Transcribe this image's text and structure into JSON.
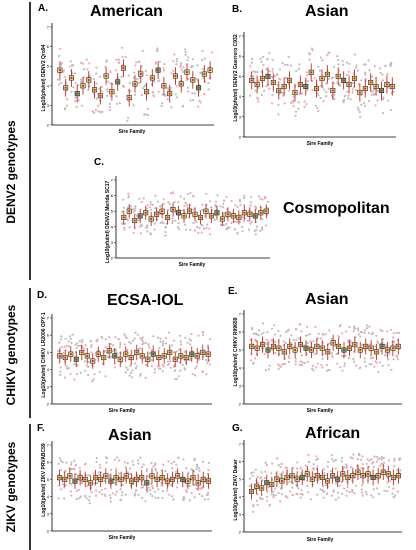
{
  "group_labels": [
    "DENV2 genotypes",
    "CHIKV genotypes",
    "ZIKV genotypes"
  ],
  "colors": {
    "grey_dots": "#bdbdbd",
    "pink_dots": "#f3a5b8",
    "mean": "#cc2b1f",
    "square_fill": "#f0d889",
    "green_square": "#63b37a"
  },
  "chart_data": [
    {
      "id": "A",
      "letter": "A.",
      "type": "scatter",
      "title": "American",
      "virus": "DENV2 Qro94",
      "ylabel": "Log10(pfu/ml) DENV2 Qro94",
      "xlabel": "Sire Family",
      "n_families": 27,
      "legend": "none",
      "grid": false,
      "family_means": [
        4.8,
        3.9,
        4.4,
        3.6,
        4.0,
        4.3,
        3.8,
        3.5,
        4.5,
        3.7,
        4.2,
        4.9,
        3.4,
        4.1,
        4.6,
        3.7,
        4.4,
        4.8,
        4.0,
        3.6,
        4.5,
        4.1,
        4.7,
        4.3,
        3.9,
        4.6,
        4.8
      ]
    },
    {
      "id": "B",
      "letter": "B.",
      "type": "scatter",
      "title": "Asian",
      "virus": "DENV2 Guerrero C932",
      "ylabel": "Log10(pfu/ml) DENV2 Guerrero C932",
      "xlabel": "Sire Family",
      "n_families": 27,
      "legend": "none",
      "grid": false,
      "family_means": [
        4.8,
        4.6,
        4.9,
        5.0,
        4.7,
        4.3,
        4.5,
        4.8,
        4.2,
        4.6,
        4.5,
        5.2,
        4.4,
        4.9,
        5.1,
        4.3,
        5.0,
        4.8,
        4.6,
        4.9,
        4.2,
        4.4,
        4.7,
        4.5,
        4.3,
        4.6,
        4.5
      ]
    },
    {
      "id": "C",
      "letter": "C.",
      "type": "scatter",
      "title": "Cosmopolitan",
      "virus": "DENV2 Merida SC17",
      "ylabel": "Log10(pfu/ml) DENV2 Merida SC17",
      "xlabel": "Sire Family",
      "n_families": 27,
      "legend": "none",
      "grid": false,
      "family_means": [
        4.6,
        5.0,
        4.4,
        4.7,
        4.9,
        4.5,
        4.8,
        5.0,
        4.6,
        5.1,
        4.9,
        4.7,
        5.0,
        4.8,
        4.6,
        5.0,
        4.7,
        4.9,
        4.5,
        4.8,
        4.7,
        4.6,
        4.9,
        4.8,
        4.7,
        4.9,
        5.0
      ]
    },
    {
      "id": "D",
      "letter": "D.",
      "type": "scatter",
      "title": "ECSA-IOL",
      "virus": "CHIKV LR2006 OPY-1",
      "ylabel": "Log10(pfu/ml) CHIKV LR2006 OPY-1",
      "xlabel": "Sire Family",
      "n_families": 28,
      "legend": "none",
      "grid": false,
      "family_means": [
        4.8,
        4.7,
        4.9,
        4.6,
        5.0,
        4.8,
        4.5,
        4.9,
        4.7,
        5.1,
        4.8,
        4.6,
        4.9,
        4.7,
        5.0,
        4.8,
        4.6,
        4.9,
        4.7,
        4.8,
        5.0,
        4.6,
        4.8,
        4.7,
        4.9,
        4.8,
        5.0,
        4.9
      ]
    },
    {
      "id": "E",
      "letter": "E.",
      "type": "scatter",
      "title": "Asian",
      "virus": "CHIKV R99659",
      "ylabel": "Log10(pfu/ml) CHIKV R99659",
      "xlabel": "Sire Family",
      "n_families": 28,
      "legend": "none",
      "grid": false,
      "family_means": [
        5.2,
        5.1,
        5.3,
        5.0,
        5.2,
        5.1,
        4.9,
        5.2,
        5.0,
        5.3,
        5.1,
        5.0,
        5.2,
        5.1,
        4.9,
        5.4,
        5.2,
        5.0,
        5.1,
        5.3,
        5.0,
        5.2,
        5.1,
        4.9,
        5.2,
        5.0,
        5.1,
        5.2
      ]
    },
    {
      "id": "F",
      "letter": "F.",
      "type": "scatter",
      "title": "Asian",
      "virus": "ZIKV PRVABC59",
      "ylabel": "Log10(pfu/ml) ZIKV PRVABC59",
      "xlabel": "Sire Family",
      "n_families": 30,
      "legend": "none",
      "grid": false,
      "family_means": [
        5.1,
        5.0,
        5.2,
        4.9,
        5.1,
        5.0,
        4.8,
        5.1,
        5.0,
        5.2,
        4.9,
        5.1,
        5.0,
        5.2,
        4.9,
        5.0,
        5.1,
        4.8,
        5.2,
        5.0,
        5.1,
        4.9,
        5.0,
        5.2,
        5.0,
        4.9,
        5.1,
        4.8,
        5.0,
        4.9
      ]
    },
    {
      "id": "G",
      "letter": "G.",
      "type": "scatter",
      "title": "African",
      "virus": "ZIKV Dakar",
      "ylabel": "Log10(pfu/ml) ZIKV Dakar",
      "xlabel": "Sire Family",
      "n_families": 30,
      "legend": "none",
      "grid": false,
      "family_means": [
        4.3,
        4.6,
        4.5,
        4.8,
        4.7,
        5.0,
        4.9,
        5.1,
        5.2,
        5.0,
        5.1,
        5.3,
        5.0,
        5.2,
        5.1,
        4.9,
        5.2,
        5.0,
        5.3,
        5.1,
        5.2,
        5.4,
        5.2,
        5.3,
        5.1,
        5.2,
        5.4,
        5.3,
        5.1,
        5.2
      ]
    }
  ]
}
